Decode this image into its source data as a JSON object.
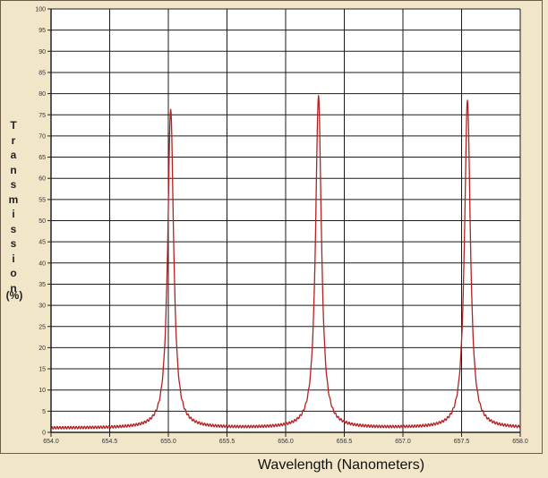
{
  "chart_data": {
    "type": "line",
    "title": "",
    "xlabel": "Wavelength (Nanometers)",
    "ylabel": "Transmission",
    "ylabel_unit": "(%)",
    "xlim": [
      654.0,
      658.0
    ],
    "ylim": [
      0,
      100
    ],
    "x_ticks": [
      "654.0",
      "654.5",
      "655.0",
      "655.5",
      "656.0",
      "656.5",
      "657.0",
      "657.5",
      "658.0"
    ],
    "y_ticks": [
      "0",
      "5",
      "10",
      "15",
      "20",
      "25",
      "30",
      "35",
      "40",
      "45",
      "50",
      "55",
      "60",
      "65",
      "70",
      "75",
      "80",
      "85",
      "90",
      "95",
      "100"
    ],
    "grid": true,
    "line_color": "#b22222",
    "series": [
      {
        "peaks": [
          {
            "center": 655.02,
            "height": 76.5
          },
          {
            "center": 656.28,
            "height": 79.5
          },
          {
            "center": 657.55,
            "height": 78.5
          }
        ],
        "baseline": 1.0,
        "hwhm": 0.03
      }
    ]
  }
}
